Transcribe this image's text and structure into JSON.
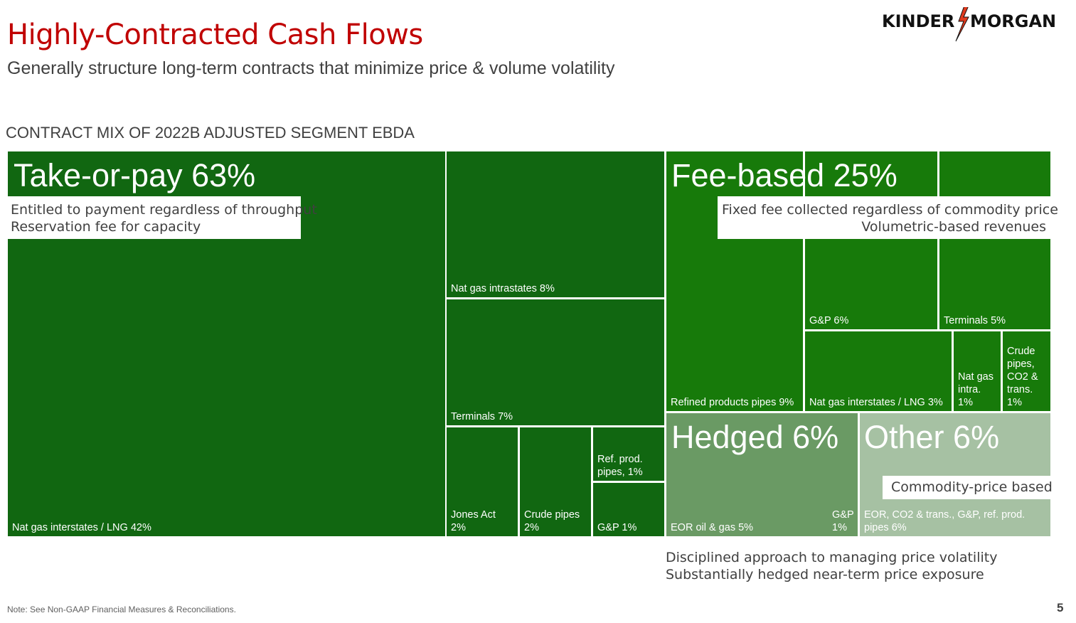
{
  "header": {
    "title": "Highly-Contracted Cash Flows",
    "subtitle": "Generally structure long-term contracts that minimize price & volume volatility",
    "logo_left": "KINDER",
    "logo_right": "MORGAN"
  },
  "section_title": "CONTRACT MIX OF 2022B ADJUSTED SEGMENT EBDA",
  "chart_data": {
    "type": "treemap",
    "title": "CONTRACT MIX OF 2022B ADJUSTED SEGMENT EBDA",
    "unit": "% of 2022B Adjusted Segment EBDA",
    "groups": [
      {
        "name": "Take-or-pay",
        "label": "Take-or-pay 63%",
        "total": 63,
        "color": "#116711",
        "description": [
          "Entitled to payment regardless of throughput",
          "Reservation fee for capacity"
        ],
        "items": [
          {
            "name": "Nat gas interstates / LNG",
            "label": "Nat gas interstates / LNG 42%",
            "value": 42
          },
          {
            "name": "Nat gas intrastates",
            "label": "Nat gas intrastates 8%",
            "value": 8
          },
          {
            "name": "Terminals",
            "label": "Terminals 7%",
            "value": 7
          },
          {
            "name": "Jones Act",
            "label": "Jones Act\n2%",
            "value": 2
          },
          {
            "name": "Crude pipes",
            "label": "Crude pipes\n2%",
            "value": 2
          },
          {
            "name": "Ref. prod. pipes",
            "label": "Ref. prod.\npipes, 1%",
            "value": 1
          },
          {
            "name": "G&P",
            "label": "G&P 1%",
            "value": 1
          }
        ]
      },
      {
        "name": "Fee-based",
        "label": "Fee-based 25%",
        "total": 25,
        "color": "#177a0a",
        "description": [
          "Fixed fee collected regardless of commodity price",
          "Volumetric-based revenues"
        ],
        "items": [
          {
            "name": "Refined products pipes",
            "label": "Refined products pipes 9%",
            "value": 9
          },
          {
            "name": "G&P",
            "label": "G&P 6%",
            "value": 6
          },
          {
            "name": "Terminals",
            "label": "Terminals 5%",
            "value": 5
          },
          {
            "name": "Nat gas interstates / LNG",
            "label": "Nat gas interstates / LNG 3%",
            "value": 3
          },
          {
            "name": "Nat gas intra.",
            "label": "Nat gas\nintra.\n1%",
            "value": 1
          },
          {
            "name": "Crude pipes, CO2 & trans.",
            "label": "Crude\npipes,\nCO2 &\ntrans.\n1%",
            "value": 1
          }
        ]
      },
      {
        "name": "Hedged",
        "label": "Hedged 6%",
        "total": 6,
        "color": "#6a9a64",
        "items": [
          {
            "name": "EOR oil & gas",
            "label": "EOR oil & gas 5%",
            "value": 5
          },
          {
            "name": "G&P",
            "label": "G&P\n1%",
            "value": 1
          }
        ]
      },
      {
        "name": "Other",
        "label": "Other 6%",
        "total": 6,
        "color": "#a6c1a3",
        "description": [
          "Commodity-price based"
        ],
        "items": [
          {
            "name": "EOR, CO2 & trans., G&P, ref. prod. pipes",
            "label": "EOR, CO2 & trans., G&P, ref. prod.\npipes 6%",
            "value": 6
          }
        ]
      }
    ]
  },
  "hedged_note": [
    "Disciplined approach to managing price volatility",
    "Substantially hedged near-term price exposure"
  ],
  "footnote": "Note: See Non-GAAP Financial Measures & Reconciliations.",
  "page_number": "5"
}
